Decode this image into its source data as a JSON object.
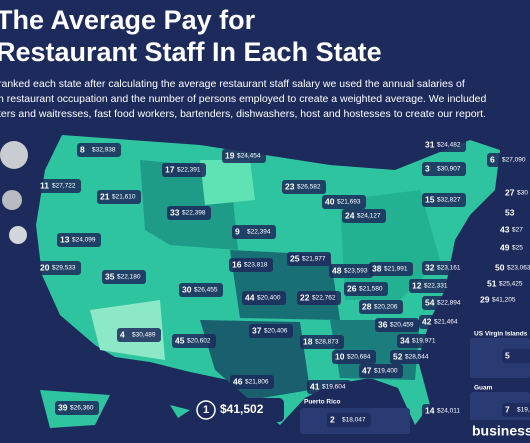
{
  "header": {
    "title_lines": [
      "The Average Pay for",
      "Restaurant Staff In Each State"
    ],
    "description_lines": [
      "ranked each state after calculating the average restaurant staff salary we used the annual salaries of",
      "h restaurant occupation and the number of persons employed to create a weighted average. We included",
      "ters and waitresses, fast food workers, bartenders, dishwashers, host and hostesses to create our report."
    ]
  },
  "states": [
    {
      "rank": 8,
      "pay": "$32,938"
    },
    {
      "rank": 11,
      "pay": "$27,722"
    },
    {
      "rank": 17,
      "pay": "$22,391"
    },
    {
      "rank": 19,
      "pay": "$24,454"
    },
    {
      "rank": 21,
      "pay": "$21,610"
    },
    {
      "rank": 23,
      "pay": "$26,582"
    },
    {
      "rank": 9,
      "pay": "$22,394"
    },
    {
      "rank": 33,
      "pay": "$22,398"
    },
    {
      "rank": 40,
      "pay": "$21,693"
    },
    {
      "rank": 24,
      "pay": "$24,127"
    },
    {
      "rank": 13,
      "pay": "$24,099"
    },
    {
      "rank": 16,
      "pay": "$23,818"
    },
    {
      "rank": 25,
      "pay": "$21,977"
    },
    {
      "rank": 48,
      "pay": "$23,593"
    },
    {
      "rank": 38,
      "pay": "$21,991"
    },
    {
      "rank": 20,
      "pay": "$29,533"
    },
    {
      "rank": 35,
      "pay": "$22,180"
    },
    {
      "rank": 30,
      "pay": "$26,455"
    },
    {
      "rank": 26,
      "pay": "$21,580"
    },
    {
      "rank": 28,
      "pay": "$20,206"
    },
    {
      "rank": 12,
      "pay": "$22,331"
    },
    {
      "rank": 32,
      "pay": "$23,161"
    },
    {
      "rank": 44,
      "pay": "$20,400"
    },
    {
      "rank": 22,
      "pay": "$22,762"
    },
    {
      "rank": 54,
      "pay": "$22,894"
    },
    {
      "rank": 4,
      "pay": "$30,489"
    },
    {
      "rank": 45,
      "pay": "$20,602"
    },
    {
      "rank": 37,
      "pay": "$20,406"
    },
    {
      "rank": 36,
      "pay": "$20,459"
    },
    {
      "rank": 42,
      "pay": "$21,464"
    },
    {
      "rank": 18,
      "pay": "$28,873"
    },
    {
      "rank": 34,
      "pay": "$19,971"
    },
    {
      "rank": 10,
      "pay": "$20,684"
    },
    {
      "rank": 52,
      "pay": "$28,544"
    },
    {
      "rank": 47,
      "pay": "$19,400"
    },
    {
      "rank": 46,
      "pay": "$21,806"
    },
    {
      "rank": 41,
      "pay": "$19,604"
    },
    {
      "rank": 39,
      "pay": "$26,360"
    },
    {
      "rank": 14,
      "pay": "$24,011"
    },
    {
      "rank": 31,
      "pay": "$24,482"
    },
    {
      "rank": 3,
      "pay": "$30,907"
    },
    {
      "rank": 15,
      "pay": "$32,827"
    },
    {
      "rank": 6,
      "pay": "$27,090"
    },
    {
      "rank": 27,
      "pay": "$30"
    },
    {
      "rank": 53,
      "pay": ""
    },
    {
      "rank": 43,
      "pay": "$27"
    },
    {
      "rank": 49,
      "pay": "$25"
    },
    {
      "rank": 50,
      "pay": "$23,063"
    },
    {
      "rank": 51,
      "pay": "$25,425"
    },
    {
      "rank": 29,
      "pay": "$41,205"
    }
  ],
  "highlight": {
    "rank": 1,
    "pay": "$41,502"
  },
  "insets": [
    {
      "name": "Puerto Rico",
      "rank": 2,
      "pay": "$18,047"
    },
    {
      "name": "US Virgin Islands",
      "rank": 5,
      "pay": ""
    },
    {
      "name": "Guam",
      "rank": 7,
      "pay": "$19,"
    }
  ],
  "brand": "business"
}
